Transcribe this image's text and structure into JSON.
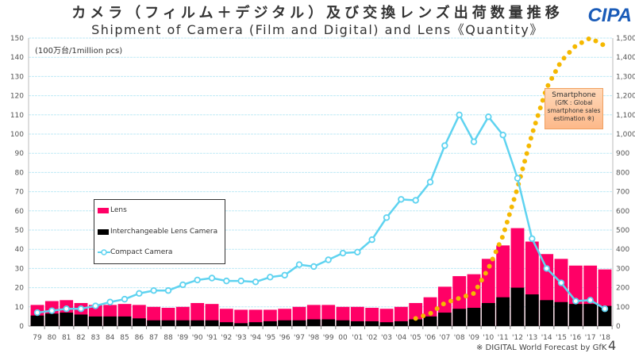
{
  "header": {
    "title_jp": "カメラ（フィルム＋デジタル）及び交換レンズ出荷数量推移",
    "title_en": "Shipment of Camera (Film and Digital) and Lens《Quantity》",
    "logo": "CIPA"
  },
  "unit_label": "(100万台/1million pcs)",
  "annotation": {
    "title": "Smartphone",
    "text": "(GfK : Global smartphone sales estimation ※)"
  },
  "footnote": "※ DIGITAL World Forecast by GfK",
  "page_number": "4",
  "colors": {
    "lens": "#ff0066",
    "ilc": "#000000",
    "compact": "#5fd3f0",
    "smartphone": "#f5b800",
    "grid": "#bfeaf5"
  },
  "chart_data": {
    "type": "bar",
    "title": "Shipment of Camera (Film and Digital) and Lens《Quantity》",
    "ylabel": "(100万台/1million pcs)",
    "ylim": [
      0,
      150
    ],
    "y2lim": [
      0,
      1500
    ],
    "yticks": [
      "0",
      "10",
      "20",
      "30",
      "40",
      "50",
      "60",
      "70",
      "80",
      "90",
      "100",
      "110",
      "120",
      "130",
      "140",
      "150"
    ],
    "y2ticks": [
      "0",
      "100",
      "200",
      "300",
      "400",
      "500",
      "600",
      "700",
      "800",
      "900",
      "1,000",
      "1,100",
      "1,200",
      "1,300",
      "1,400",
      "1,500"
    ],
    "grid": true,
    "legend_position": "left-middle",
    "categories": [
      "79",
      "80",
      "81",
      "82",
      "83",
      "84",
      "85",
      "86",
      "87",
      "88",
      "'89",
      "'90",
      "'91",
      "'92",
      "'93",
      "'94",
      "'95",
      "'96",
      "'97",
      "'98",
      "'99",
      "00",
      "'01",
      "'02",
      "'03",
      "'04",
      "'05",
      "'06",
      "'07",
      "'08",
      "'09",
      "'10",
      "'11",
      "'12",
      "'13",
      "'14",
      "'15",
      "'16",
      "'17",
      "'18"
    ],
    "series": [
      {
        "name": "Lens",
        "type": "bar",
        "axis": "left",
        "values": [
          11,
          13,
          13.5,
          12,
          11,
          11,
          11.5,
          11,
          10,
          9.5,
          10,
          12,
          11.5,
          9,
          8.5,
          8.5,
          8.5,
          9,
          10,
          11,
          11,
          10,
          10,
          9.5,
          9,
          10,
          12,
          15,
          20.5,
          26,
          27,
          35,
          42,
          51,
          44,
          37.5,
          35,
          31.5,
          31.5,
          29.5
        ]
      },
      {
        "name": "Interchangeable Lens Camera",
        "type": "bar",
        "axis": "left",
        "values": [
          5.5,
          6.5,
          7,
          6,
          5,
          5,
          5,
          4,
          3,
          3,
          3,
          3,
          3,
          2,
          1.5,
          2,
          2.5,
          3,
          3,
          3.5,
          3.5,
          3,
          2.5,
          2.5,
          2,
          2.5,
          3.5,
          5,
          7,
          9,
          9.5,
          12,
          15,
          20,
          16.5,
          13.5,
          12.5,
          11.5,
          11.5,
          10.5
        ]
      },
      {
        "name": "Compact Camera",
        "type": "line",
        "axis": "left",
        "values": [
          7,
          8,
          9,
          9,
          10.5,
          12.5,
          14,
          17,
          18.5,
          18.5,
          21.5,
          24,
          25,
          23.5,
          23.5,
          23,
          25.5,
          26.5,
          32,
          31,
          34.5,
          38,
          38.5,
          45,
          56.5,
          66,
          65.5,
          75,
          94,
          110,
          96,
          109,
          99.5,
          77,
          45.5,
          30,
          22.5,
          13,
          13.5,
          9
        ]
      },
      {
        "name": "Smartphone",
        "type": "dotted-line",
        "axis": "right",
        "values": [
          null,
          null,
          null,
          null,
          null,
          null,
          null,
          null,
          null,
          null,
          null,
          null,
          null,
          null,
          null,
          null,
          null,
          null,
          null,
          null,
          null,
          null,
          null,
          null,
          null,
          null,
          40,
          65,
          120,
          145,
          170,
          300,
          470,
          720,
          1000,
          1240,
          1380,
          1460,
          1500,
          1460
        ]
      }
    ]
  },
  "legend": {
    "lens": "Lens",
    "ilc": "Interchangeable Lens Camera",
    "compact": "Compact Camera"
  }
}
